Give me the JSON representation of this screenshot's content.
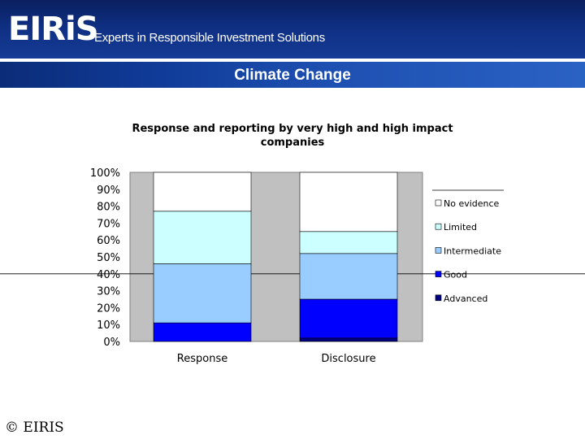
{
  "brand": {
    "logo_text": "EIRiS",
    "tagline": "Experts in Responsible Investment Solutions"
  },
  "slide_title": "Climate Change",
  "footer": "© EIRIS",
  "colors": {
    "header_dark": "#0a1f5e",
    "plot_background": "#c0c0c0",
    "no_evidence": "#ffffff",
    "limited": "#ccffff",
    "intermediate": "#99ccff",
    "good": "#0000ff",
    "advanced": "#000080"
  },
  "chart_data": {
    "type": "bar",
    "stacked": true,
    "title": "Response and reporting by very high and high impact companies",
    "title_lines": [
      "Response and reporting by very high and high impact",
      "companies"
    ],
    "categories": [
      "Response",
      "Disclosure"
    ],
    "ylim": [
      0,
      100
    ],
    "yticks": [
      "0%",
      "10%",
      "20%",
      "30%",
      "40%",
      "50%",
      "60%",
      "70%",
      "80%",
      "90%",
      "100%"
    ],
    "series": [
      {
        "name": "Advanced",
        "color": "#000080",
        "values": [
          0,
          2
        ]
      },
      {
        "name": "Good",
        "color": "#0000ff",
        "values": [
          11,
          23
        ]
      },
      {
        "name": "Intermediate",
        "color": "#99ccff",
        "values": [
          35,
          27
        ]
      },
      {
        "name": "Limited",
        "color": "#ccffff",
        "values": [
          31,
          13
        ]
      },
      {
        "name": "No evidence",
        "color": "#ffffff",
        "values": [
          23,
          35
        ]
      }
    ],
    "legend_order": [
      "No evidence",
      "Limited",
      "Intermediate",
      "Good",
      "Advanced"
    ],
    "legend_position": "right"
  }
}
